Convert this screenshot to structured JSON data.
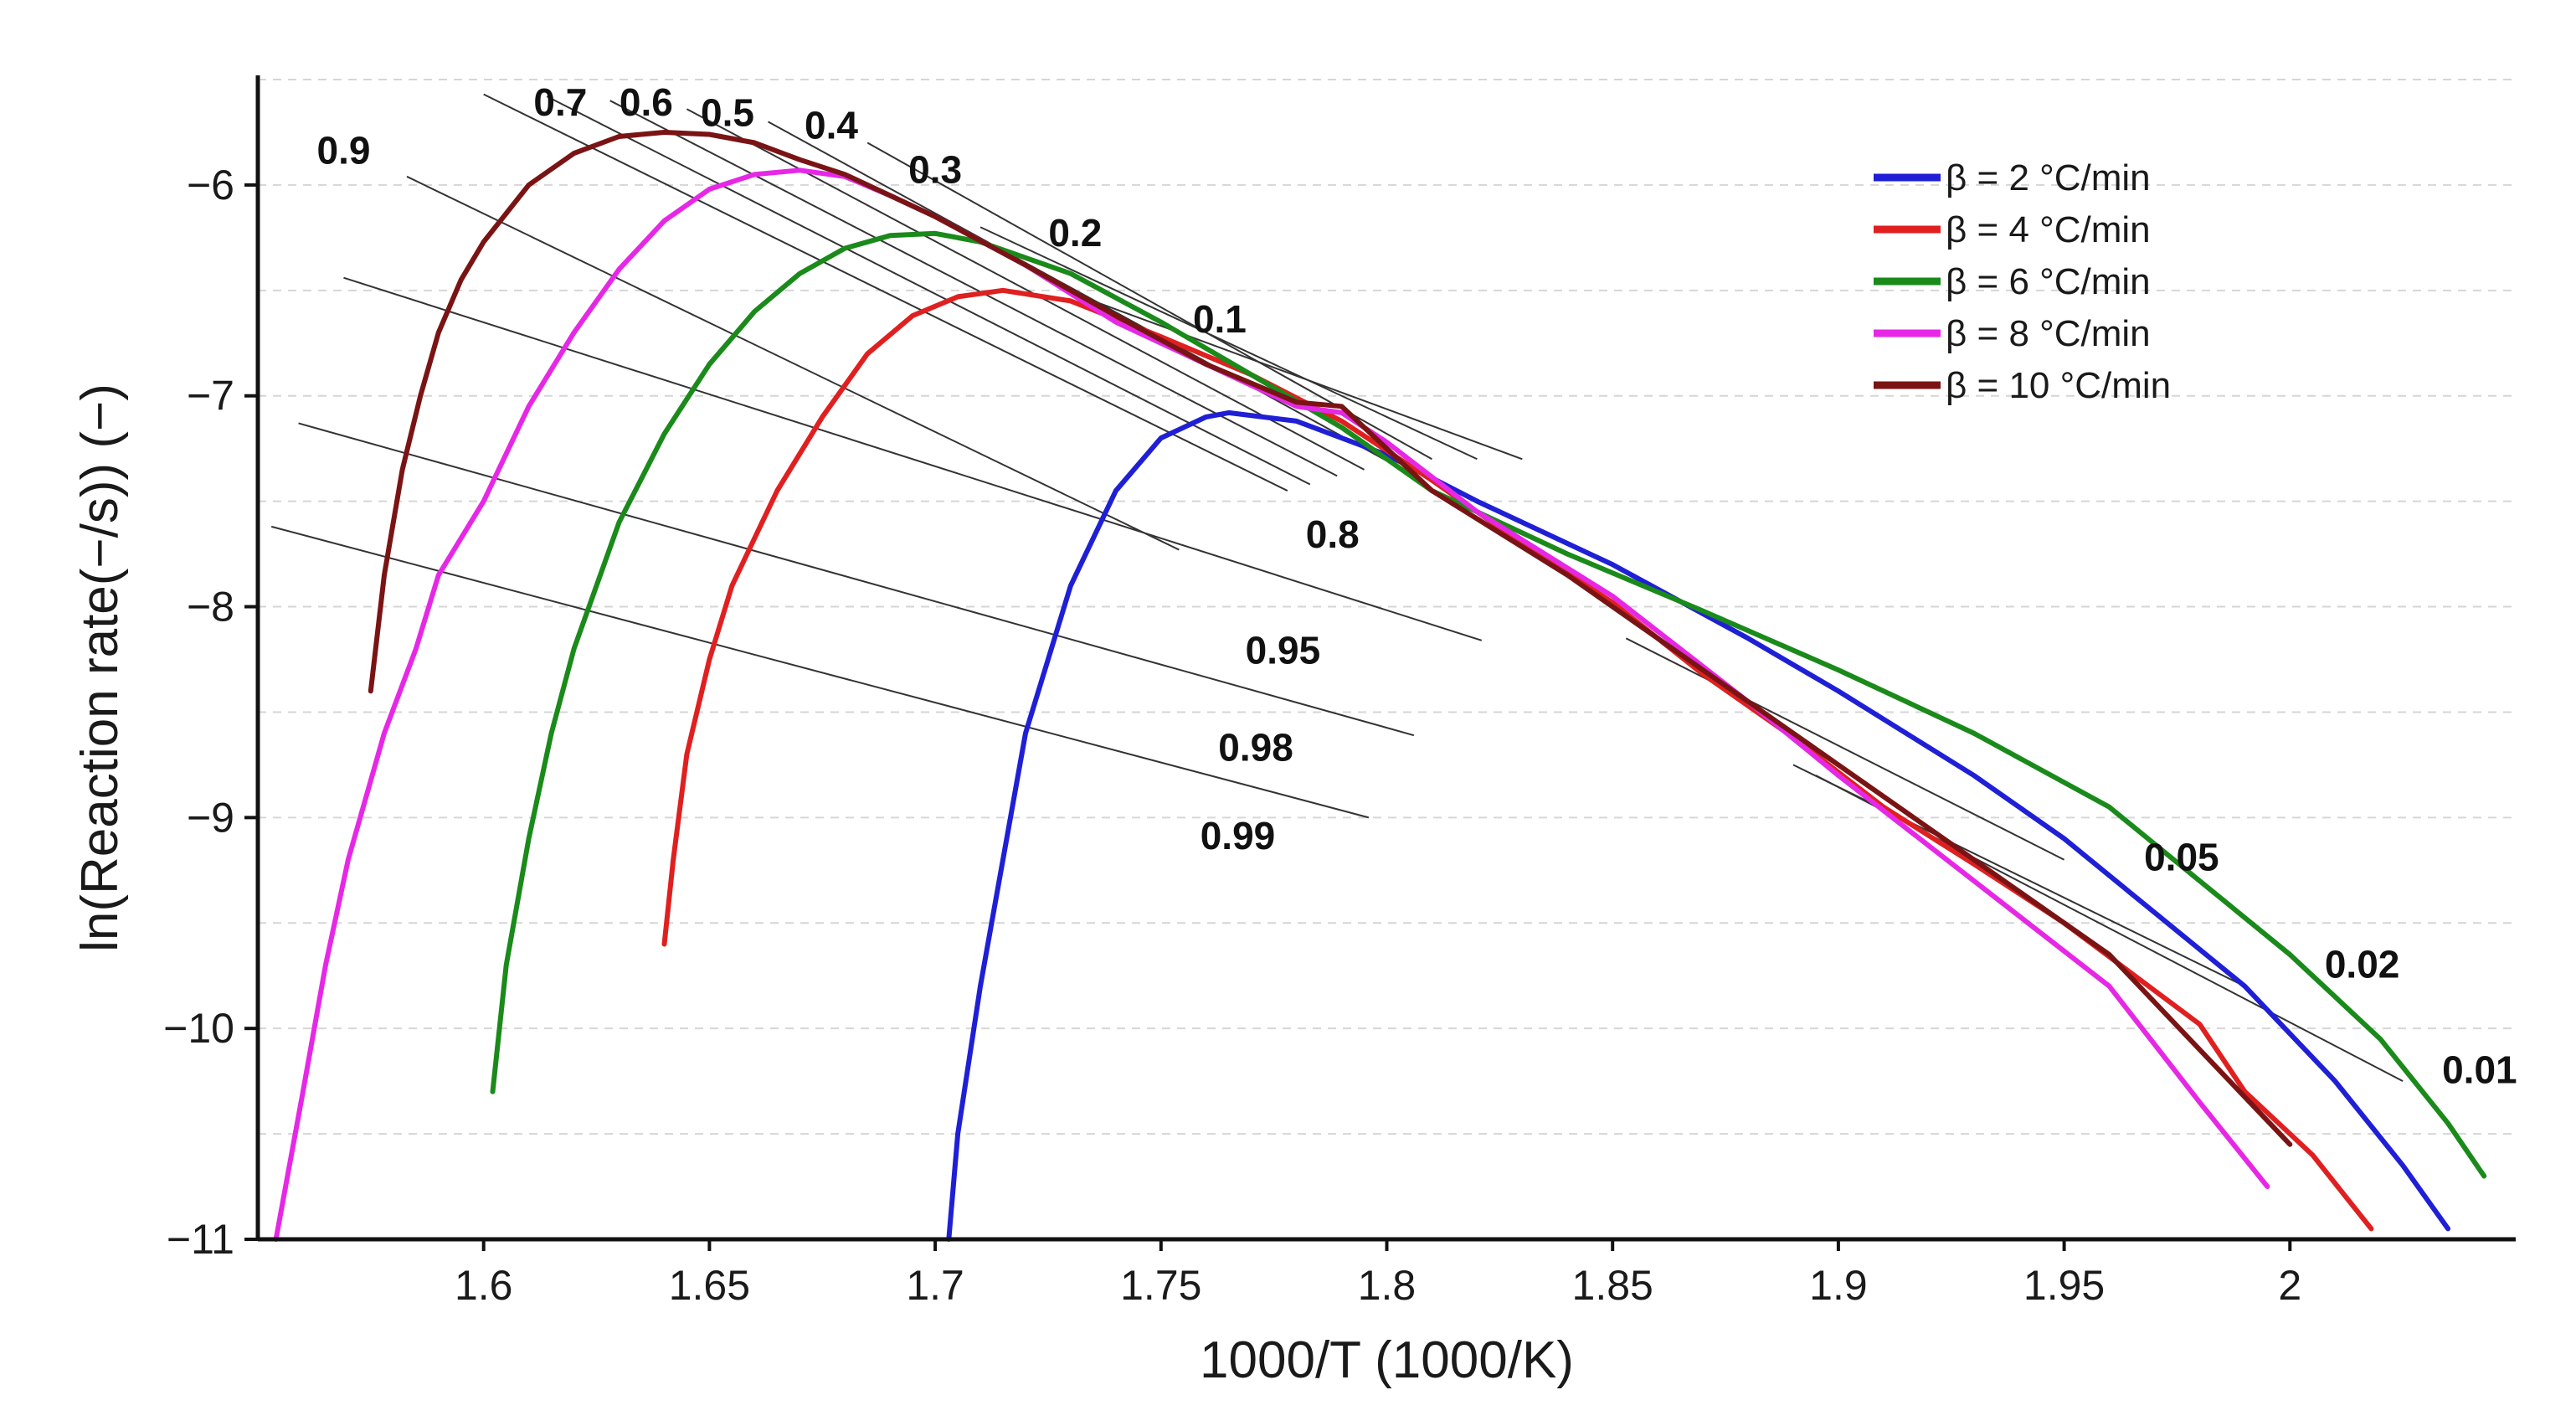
{
  "chart_data": {
    "type": "line",
    "title": "",
    "xlabel": "1000/T (1000/K)",
    "ylabel": "ln(Reaction rate(−/s)) (−)",
    "xlim": [
      1.55,
      2.05
    ],
    "ylim": [
      -11,
      -5.5
    ],
    "grid": "horizontal dashed",
    "legend_position": "top-right",
    "x_ticks": [
      1.6,
      1.65,
      1.7,
      1.75,
      1.8,
      1.85,
      1.9,
      1.95,
      2
    ],
    "x_tick_labels": [
      "1.6",
      "1.65",
      "1.7",
      "1.75",
      "1.8",
      "1.85",
      "1.9",
      "1.95",
      "2"
    ],
    "y_ticks": [
      -6,
      -7,
      -8,
      -9,
      -10,
      -11
    ],
    "y_tick_labels": [
      "−6",
      "−7",
      "−8",
      "−9",
      "−10",
      "−11"
    ],
    "grid_y": [
      -5.5,
      -6,
      -6.5,
      -7,
      -7.5,
      -8,
      -8.5,
      -9,
      -9.5,
      -10,
      -10.5
    ],
    "series": [
      {
        "name": "β = 2 °C/min",
        "color": "#1f1fd6",
        "x": [
          1.703,
          1.705,
          1.71,
          1.715,
          1.72,
          1.73,
          1.74,
          1.75,
          1.76,
          1.765,
          1.78,
          1.8,
          1.82,
          1.85,
          1.88,
          1.9,
          1.93,
          1.95,
          1.97,
          1.99,
          2.01,
          2.025,
          2.035
        ],
        "y": [
          -11.0,
          -10.5,
          -9.8,
          -9.2,
          -8.6,
          -7.9,
          -7.45,
          -7.2,
          -7.1,
          -7.08,
          -7.12,
          -7.28,
          -7.5,
          -7.8,
          -8.15,
          -8.4,
          -8.8,
          -9.1,
          -9.45,
          -9.8,
          -10.25,
          -10.65,
          -10.95
        ]
      },
      {
        "name": "β = 4 °C/min",
        "color": "#e02020",
        "x": [
          1.64,
          1.642,
          1.645,
          1.65,
          1.655,
          1.665,
          1.675,
          1.685,
          1.695,
          1.705,
          1.715,
          1.73,
          1.75,
          1.77,
          1.79,
          1.81,
          1.83,
          1.85,
          1.87,
          1.89,
          1.91,
          1.93,
          1.95,
          1.97,
          1.98,
          1.99,
          2.005,
          2.018
        ],
        "y": [
          -9.6,
          -9.2,
          -8.7,
          -8.25,
          -7.9,
          -7.45,
          -7.1,
          -6.8,
          -6.62,
          -6.53,
          -6.5,
          -6.55,
          -6.72,
          -6.9,
          -7.12,
          -7.4,
          -7.7,
          -7.98,
          -8.32,
          -8.62,
          -8.95,
          -9.22,
          -9.5,
          -9.82,
          -9.98,
          -10.3,
          -10.6,
          -10.95
        ]
      },
      {
        "name": "β = 6 °C/min",
        "color": "#1a8a1a",
        "x": [
          1.602,
          1.605,
          1.61,
          1.615,
          1.62,
          1.63,
          1.64,
          1.65,
          1.66,
          1.67,
          1.68,
          1.69,
          1.7,
          1.71,
          1.73,
          1.75,
          1.77,
          1.79,
          1.81,
          1.84,
          1.87,
          1.9,
          1.93,
          1.96,
          1.98,
          2.0,
          2.02,
          2.035,
          2.043
        ],
        "y": [
          -10.3,
          -9.7,
          -9.1,
          -8.6,
          -8.2,
          -7.6,
          -7.18,
          -6.85,
          -6.6,
          -6.42,
          -6.3,
          -6.24,
          -6.23,
          -6.27,
          -6.42,
          -6.65,
          -6.9,
          -7.15,
          -7.45,
          -7.75,
          -8.02,
          -8.3,
          -8.6,
          -8.95,
          -9.3,
          -9.65,
          -10.05,
          -10.45,
          -10.7
        ]
      },
      {
        "name": "β = 8 °C/min",
        "color": "#e628e6",
        "x": [
          1.554,
          1.56,
          1.565,
          1.57,
          1.578,
          1.585,
          1.59,
          1.6,
          1.61,
          1.62,
          1.63,
          1.64,
          1.65,
          1.66,
          1.67,
          1.68,
          1.69,
          1.7,
          1.72,
          1.74,
          1.76,
          1.78,
          1.79,
          1.8,
          1.82,
          1.85,
          1.88,
          1.9,
          1.93,
          1.96,
          1.98,
          1.995
        ],
        "y": [
          -11.0,
          -10.3,
          -9.7,
          -9.2,
          -8.6,
          -8.2,
          -7.85,
          -7.5,
          -7.05,
          -6.7,
          -6.4,
          -6.17,
          -6.02,
          -5.95,
          -5.93,
          -5.96,
          -6.05,
          -6.15,
          -6.38,
          -6.65,
          -6.85,
          -7.05,
          -7.08,
          -7.22,
          -7.55,
          -7.95,
          -8.45,
          -8.8,
          -9.3,
          -9.8,
          -10.35,
          -10.75
        ]
      },
      {
        "name": "β = 10 °C/min",
        "color": "#7a1414",
        "x": [
          1.575,
          1.578,
          1.582,
          1.586,
          1.59,
          1.595,
          1.6,
          1.61,
          1.62,
          1.63,
          1.64,
          1.65,
          1.66,
          1.67,
          1.68,
          1.69,
          1.7,
          1.72,
          1.74,
          1.76,
          1.78,
          1.79,
          1.8,
          1.81,
          1.84,
          1.87,
          1.9,
          1.93,
          1.96,
          1.98,
          2.0
        ],
        "y": [
          -8.4,
          -7.85,
          -7.35,
          -7.0,
          -6.7,
          -6.45,
          -6.27,
          -6.0,
          -5.85,
          -5.77,
          -5.75,
          -5.76,
          -5.8,
          -5.88,
          -5.95,
          -6.05,
          -6.15,
          -6.38,
          -6.62,
          -6.85,
          -7.03,
          -7.05,
          -7.25,
          -7.45,
          -7.85,
          -8.3,
          -8.75,
          -9.2,
          -9.65,
          -10.1,
          -10.55
        ]
      }
    ],
    "isoconversional_lines": [
      {
        "label": "0.99",
        "x1": 1.553,
        "y1": -7.62,
        "x2": 1.796,
        "y2": -9.0
      },
      {
        "label": "0.98",
        "x1": 1.559,
        "y1": -7.13,
        "x2": 1.806,
        "y2": -8.61
      },
      {
        "label": "0.95",
        "x1": 1.569,
        "y1": -6.44,
        "x2": 1.821,
        "y2": -8.16
      },
      {
        "label": "0.9",
        "x1": 1.583,
        "y1": -5.96,
        "x2": 1.754,
        "y2": -7.73
      },
      {
        "label": "0.8",
        "x1": 1.6,
        "y1": -5.57,
        "x2": 1.778,
        "y2": -7.45
      },
      {
        "label": "0.7",
        "x1": 1.614,
        "y1": -5.58,
        "x2": 1.783,
        "y2": -7.42
      },
      {
        "label": "0.6",
        "x1": 1.628,
        "y1": -5.6,
        "x2": 1.789,
        "y2": -7.38
      },
      {
        "label": "0.5",
        "x1": 1.645,
        "y1": -5.64,
        "x2": 1.795,
        "y2": -7.35
      },
      {
        "label": "0.4",
        "x1": 1.663,
        "y1": -5.7,
        "x2": 1.801,
        "y2": -7.32
      },
      {
        "label": "0.3",
        "x1": 1.685,
        "y1": -5.8,
        "x2": 1.81,
        "y2": -7.3
      },
      {
        "label": "0.2",
        "x1": 1.71,
        "y1": -6.2,
        "x2": 1.82,
        "y2": -7.3
      },
      {
        "label": "0.1",
        "x1": 1.735,
        "y1": -6.55,
        "x2": 1.83,
        "y2": -7.3
      },
      {
        "label": "0.05",
        "x1": 1.853,
        "y1": -8.15,
        "x2": 1.95,
        "y2": -9.2
      },
      {
        "label": "0.02",
        "x1": 1.89,
        "y1": -8.75,
        "x2": 1.99,
        "y2": -9.8
      },
      {
        "label": "0.01",
        "x1": 1.895,
        "y1": -8.8,
        "x2": 2.025,
        "y2": -10.25
      }
    ],
    "annotations": [
      {
        "text": "0.7",
        "x": 1.617,
        "y": -5.67
      },
      {
        "text": "0.6",
        "x": 1.636,
        "y": -5.67
      },
      {
        "text": "0.5",
        "x": 1.654,
        "y": -5.72
      },
      {
        "text": "0.4",
        "x": 1.677,
        "y": -5.78
      },
      {
        "text": "0.3",
        "x": 1.7,
        "y": -5.99
      },
      {
        "text": "0.9",
        "x": 1.569,
        "y": -5.9
      },
      {
        "text": "0.2",
        "x": 1.731,
        "y": -6.29
      },
      {
        "text": "0.1",
        "x": 1.763,
        "y": -6.7
      },
      {
        "text": "0.8",
        "x": 1.788,
        "y": -7.72
      },
      {
        "text": "0.95",
        "x": 1.777,
        "y": -8.27
      },
      {
        "text": "0.98",
        "x": 1.771,
        "y": -8.73
      },
      {
        "text": "0.99",
        "x": 1.767,
        "y": -9.15
      },
      {
        "text": "0.05",
        "x": 1.976,
        "y": -9.25
      },
      {
        "text": "0.02",
        "x": 2.016,
        "y": -9.76
      },
      {
        "text": "0.01",
        "x": 2.042,
        "y": -10.26
      }
    ]
  }
}
